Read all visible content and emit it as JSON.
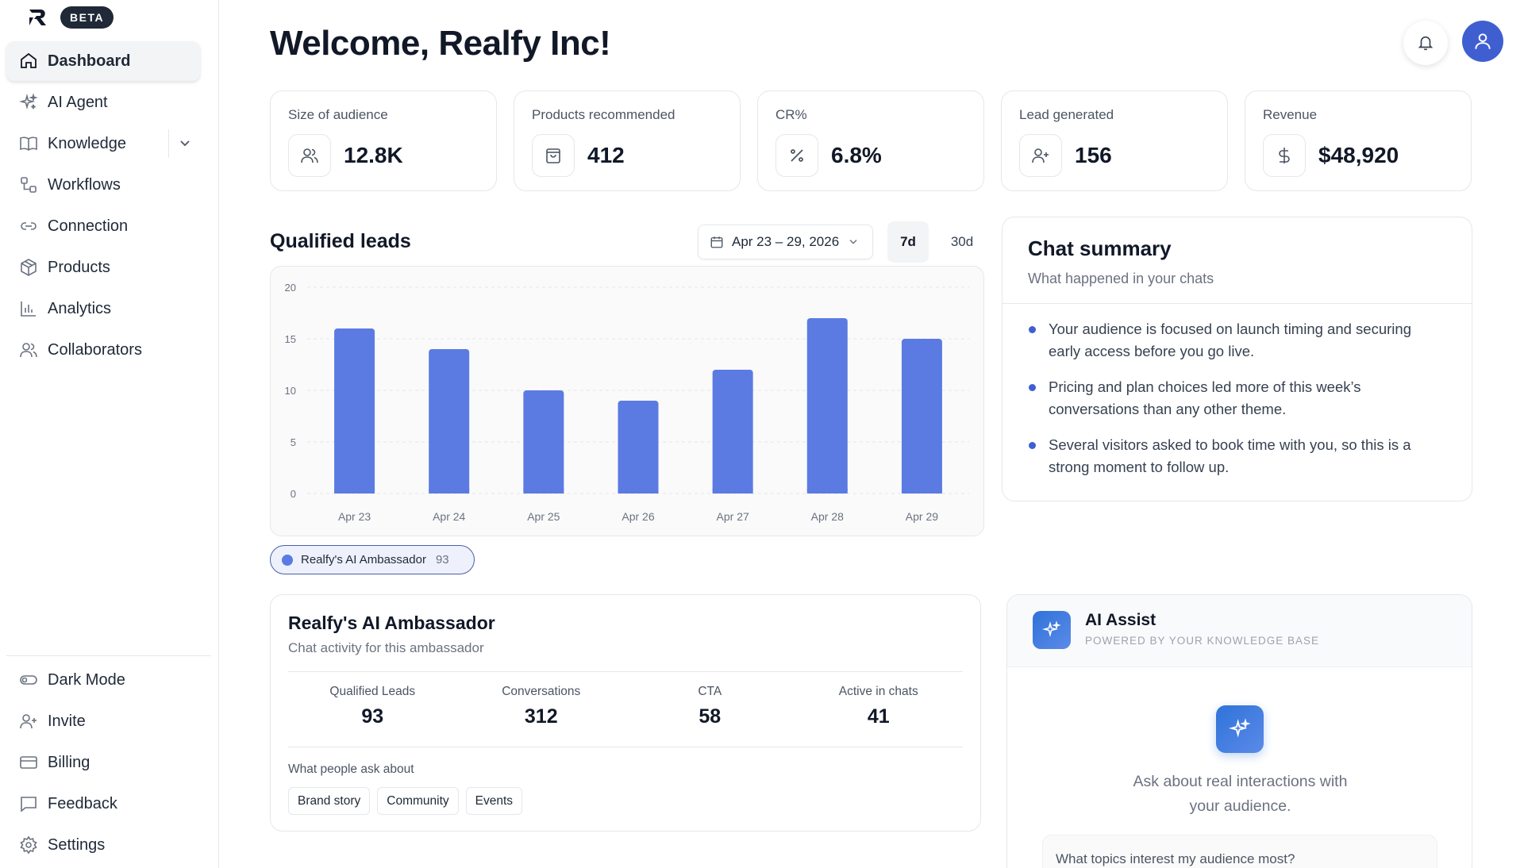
{
  "brand": {
    "badge": "BETA"
  },
  "sidebar": {
    "items": [
      {
        "label": "Dashboard",
        "icon": "home-icon"
      },
      {
        "label": "AI Agent",
        "icon": "sparkles-icon"
      },
      {
        "label": "Knowledge",
        "icon": "book-icon"
      },
      {
        "label": "Workflows",
        "icon": "workflow-icon"
      },
      {
        "label": "Connection",
        "icon": "link-icon"
      },
      {
        "label": "Products",
        "icon": "box-icon"
      },
      {
        "label": "Analytics",
        "icon": "bar-chart-icon"
      },
      {
        "label": "Collaborators",
        "icon": "users-icon"
      }
    ],
    "bottom": [
      {
        "label": "Dark Mode",
        "icon": "toggle-icon"
      },
      {
        "label": "Invite",
        "icon": "user-plus-icon"
      },
      {
        "label": "Billing",
        "icon": "credit-card-icon"
      },
      {
        "label": "Feedback",
        "icon": "message-icon"
      },
      {
        "label": "Settings",
        "icon": "gear-icon"
      }
    ]
  },
  "header": {
    "title": "Welcome, Realfy Inc!"
  },
  "stats": [
    {
      "label": "Size of audience",
      "value": "12.8K",
      "icon": "users-icon"
    },
    {
      "label": "Products recommended",
      "value": "412",
      "icon": "shopping-bag-icon"
    },
    {
      "label": "CR%",
      "value": "6.8%",
      "icon": "percent-icon"
    },
    {
      "label": "Lead generated",
      "value": "156",
      "icon": "user-plus-icon"
    },
    {
      "label": "Revenue",
      "value": "$48,920",
      "icon": "dollar-icon"
    }
  ],
  "leads": {
    "title": "Qualified leads",
    "date_range": "Apr 23 – 29, 2026",
    "range_7d": "7d",
    "range_30d": "30d",
    "legend_label": "Realfy's AI Ambassador",
    "legend_count": "93"
  },
  "chart_data": {
    "type": "bar",
    "categories": [
      "Apr 23",
      "Apr 24",
      "Apr 25",
      "Apr 26",
      "Apr 27",
      "Apr 28",
      "Apr 29"
    ],
    "series": [
      {
        "name": "Realfy's AI Ambassador",
        "values": [
          16,
          14,
          10,
          9,
          12,
          17,
          15
        ]
      }
    ],
    "yticks": [
      0,
      5,
      10,
      15,
      20
    ],
    "ylim": [
      0,
      20
    ],
    "grid": true,
    "color": "#5b7be3"
  },
  "chat_summary": {
    "title": "Chat summary",
    "subtitle": "What happened in your chats",
    "points": [
      "Your audience is focused on launch timing and securing early access before you go live.",
      "Pricing and plan choices led more of this week’s conversations than any other theme.",
      "Several visitors asked to book time with you, so this is a strong moment to follow up."
    ]
  },
  "ambassador": {
    "title": "Realfy's AI Ambassador",
    "subtitle": "Chat activity for this ambassador",
    "metrics": [
      {
        "label": "Qualified Leads",
        "value": "93"
      },
      {
        "label": "Conversations",
        "value": "312"
      },
      {
        "label": "CTA",
        "value": "58"
      },
      {
        "label": "Active in chats",
        "value": "41"
      }
    ],
    "ask_label": "What people ask about",
    "tags": [
      "Brand story",
      "Community",
      "Events"
    ]
  },
  "assist": {
    "title": "AI Assist",
    "subtitle": "POWERED BY YOUR KNOWLEDGE BASE",
    "message_line1": "Ask about real interactions with",
    "message_line2": "your audience.",
    "suggestion": "What topics interest my audience most?"
  }
}
